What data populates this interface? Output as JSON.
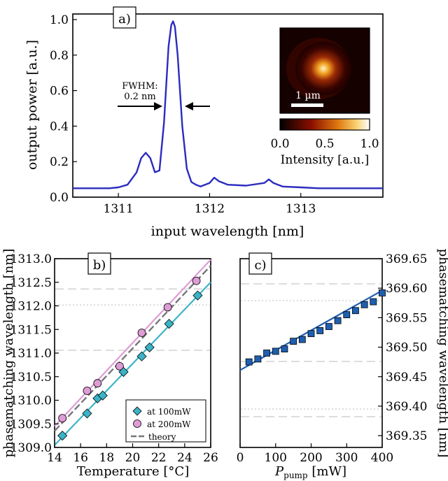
{
  "chart_data": [
    {
      "panel": "a)",
      "type": "line",
      "xlabel": "input wavelength [nm]",
      "ylabel": "output power [a.u.]",
      "xlim": [
        1310.5,
        1313.9
      ],
      "ylim": [
        0.0,
        1.0
      ],
      "xticks": [
        "1311",
        "1312",
        "1313"
      ],
      "yticks": [
        "0.0",
        "0.2",
        "0.4",
        "0.6",
        "0.8",
        "1.0"
      ],
      "color": "#2b2bbf",
      "x": [
        1310.5,
        1310.7,
        1310.9,
        1311.0,
        1311.1,
        1311.2,
        1311.25,
        1311.3,
        1311.35,
        1311.4,
        1311.45,
        1311.5,
        1311.55,
        1311.58,
        1311.6,
        1311.62,
        1311.65,
        1311.7,
        1311.75,
        1311.8,
        1311.85,
        1311.9,
        1312.0,
        1312.05,
        1312.1,
        1312.2,
        1312.4,
        1312.6,
        1312.65,
        1312.7,
        1312.8,
        1313.0,
        1313.2,
        1313.4,
        1313.6,
        1313.9
      ],
      "y": [
        0.05,
        0.05,
        0.05,
        0.055,
        0.07,
        0.14,
        0.22,
        0.25,
        0.22,
        0.14,
        0.15,
        0.42,
        0.85,
        0.97,
        0.99,
        0.96,
        0.8,
        0.4,
        0.16,
        0.085,
        0.07,
        0.06,
        0.08,
        0.11,
        0.09,
        0.07,
        0.065,
        0.08,
        0.1,
        0.08,
        0.06,
        0.055,
        0.05,
        0.05,
        0.05,
        0.05
      ],
      "annotation": {
        "text_line1": "FWHM:",
        "text_line2": "0.2 nm"
      },
      "inset": {
        "scale_bar_label": "1 µm",
        "colorbar_ticks": [
          "0.0",
          "0.5",
          "1.0"
        ],
        "colorbar_label": "Intensity [a.u.]"
      }
    },
    {
      "panel": "b)",
      "type": "scatter",
      "xlabel": "Temperature [°C]",
      "ylabel": "phasematching wavelength [nm]",
      "xlim": [
        14,
        26
      ],
      "ylim": [
        1309.0,
        1313.0
      ],
      "xticks": [
        "14",
        "16",
        "18",
        "20",
        "22",
        "24",
        "26"
      ],
      "yticks": [
        "1309.0",
        "1309.5",
        "1310.0",
        "1310.5",
        "1311.0",
        "1311.5",
        "1312.0",
        "1312.5",
        "1313.0"
      ],
      "series": [
        {
          "name": "at 100mW",
          "marker": "diamond",
          "color": "#3bb3c6",
          "x": [
            14.6,
            16.5,
            17.3,
            17.7,
            19.3,
            20.7,
            21.3,
            22.8,
            25.0
          ],
          "y": [
            1309.25,
            1309.72,
            1310.04,
            1310.1,
            1310.6,
            1310.93,
            1311.12,
            1311.62,
            1312.22
          ],
          "fit": [
            [
              14,
              1309.05
            ],
            [
              26,
              1312.5
            ]
          ]
        },
        {
          "name": "at 200mW",
          "marker": "circle",
          "color": "#de9cd6",
          "x": [
            14.6,
            16.5,
            17.3,
            19.0,
            20.7,
            22.7,
            24.9
          ],
          "y": [
            1309.62,
            1310.2,
            1310.36,
            1310.72,
            1311.43,
            1311.97,
            1312.53
          ],
          "fit": [
            [
              14,
              1309.45
            ],
            [
              26,
              1312.98
            ]
          ]
        },
        {
          "name": "theory",
          "marker": "dashed",
          "color": "#777777",
          "fit": [
            [
              14,
              1309.35
            ],
            [
              26,
              1312.85
            ]
          ]
        }
      ]
    },
    {
      "panel": "c)",
      "type": "scatter",
      "xlabel": "P",
      "xlabel_sub": "pump",
      "xlabel_unit": " [mW]",
      "ylabel": "phasematching wavelength [nm]",
      "xlim": [
        0,
        400
      ],
      "ylim": [
        369.33,
        369.65
      ],
      "xticks": [
        "0",
        "100",
        "200",
        "300",
        "400"
      ],
      "yticks": [
        "369.35",
        "369.40",
        "369.45",
        "369.50",
        "369.55",
        "369.60",
        "369.65"
      ],
      "series": [
        {
          "name": "",
          "marker": "square",
          "color": "#1f5fb0",
          "x": [
            25,
            50,
            75,
            100,
            125,
            150,
            175,
            200,
            225,
            250,
            275,
            300,
            325,
            350,
            375,
            400
          ],
          "y": [
            369.475,
            369.48,
            369.49,
            369.493,
            369.497,
            369.51,
            369.513,
            369.523,
            369.528,
            369.535,
            369.545,
            369.555,
            369.562,
            369.572,
            369.577,
            369.592
          ],
          "fit": [
            [
              0,
              369.461
            ],
            [
              400,
              369.596
            ]
          ]
        }
      ]
    }
  ]
}
